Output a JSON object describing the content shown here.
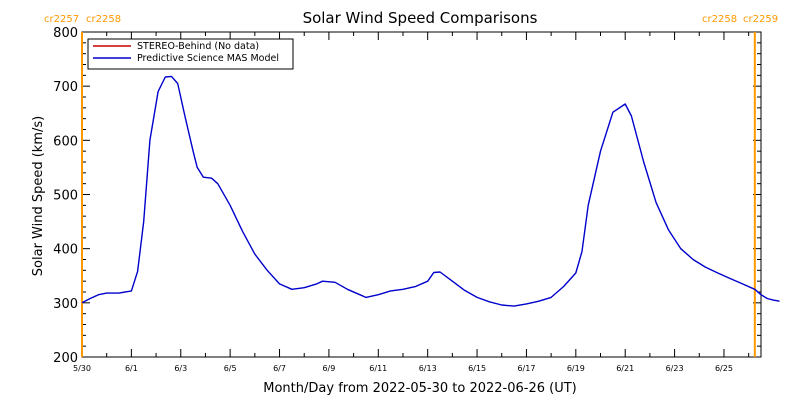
{
  "chart_data": {
    "type": "line",
    "title": "Solar Wind Speed Comparisons",
    "xlabel": "Month/Day from 2022-05-30 to 2022-06-26 (UT)",
    "ylabel": "Solar Wind Speed (km/s)",
    "ylim": [
      200,
      800
    ],
    "xlim": [
      "2022-05-30",
      "2022-06-26T12:00"
    ],
    "y_ticks": [
      "200",
      "300",
      "400",
      "500",
      "600",
      "700",
      "800"
    ],
    "x_ticks": [
      {
        "label": "5/30",
        "date": "2022-05-30"
      },
      {
        "label": "6/1",
        "date": "2022-06-01"
      },
      {
        "label": "6/3",
        "date": "2022-06-03"
      },
      {
        "label": "6/5",
        "date": "2022-06-05"
      },
      {
        "label": "6/7",
        "date": "2022-06-07"
      },
      {
        "label": "6/9",
        "date": "2022-06-09"
      },
      {
        "label": "6/11",
        "date": "2022-06-11"
      },
      {
        "label": "6/13",
        "date": "2022-06-13"
      },
      {
        "label": "6/15",
        "date": "2022-06-15"
      },
      {
        "label": "6/17",
        "date": "2022-06-17"
      },
      {
        "label": "6/19",
        "date": "2022-06-19"
      },
      {
        "label": "6/21",
        "date": "2022-06-21"
      },
      {
        "label": "6/23",
        "date": "2022-06-23"
      },
      {
        "label": "6/25",
        "date": "2022-06-25"
      }
    ],
    "carrington_markers": [
      {
        "date": "2022-05-30",
        "left_label": "cr2257",
        "right_label": "cr2258",
        "side": "left"
      },
      {
        "date": "2022-06-26T06:00",
        "left_label": "cr2258",
        "right_label": "cr2259",
        "side": "right"
      }
    ],
    "marker_color": "#ff9900",
    "legend": {
      "position": "top-left"
    },
    "series": [
      {
        "name": "STEREO-Behind (No data)",
        "color": "#cc0000",
        "points": []
      },
      {
        "name": "Predictive Science MAS Model",
        "color": "#0000cc",
        "points": [
          [
            "2022-05-30T00:00",
            300
          ],
          [
            "2022-05-30T08:00",
            308
          ],
          [
            "2022-05-30T16:00",
            315
          ],
          [
            "2022-05-31T00:00",
            318
          ],
          [
            "2022-05-31T12:00",
            318
          ],
          [
            "2022-06-01T00:00",
            322
          ],
          [
            "2022-06-01T06:00",
            358
          ],
          [
            "2022-06-01T12:00",
            450
          ],
          [
            "2022-06-01T18:00",
            600
          ],
          [
            "2022-06-02T02:00",
            690
          ],
          [
            "2022-06-02T09:00",
            717
          ],
          [
            "2022-06-02T15:00",
            718
          ],
          [
            "2022-06-02T21:00",
            705
          ],
          [
            "2022-06-03T04:00",
            645
          ],
          [
            "2022-06-03T12:00",
            580
          ],
          [
            "2022-06-03T16:00",
            550
          ],
          [
            "2022-06-03T22:00",
            532
          ],
          [
            "2022-06-04T06:00",
            530
          ],
          [
            "2022-06-04T12:00",
            520
          ],
          [
            "2022-06-05T00:00",
            480
          ],
          [
            "2022-06-05T12:00",
            432
          ],
          [
            "2022-06-06T00:00",
            390
          ],
          [
            "2022-06-06T12:00",
            360
          ],
          [
            "2022-06-07T00:00",
            335
          ],
          [
            "2022-06-07T12:00",
            325
          ],
          [
            "2022-06-08T00:00",
            328
          ],
          [
            "2022-06-08T12:00",
            335
          ],
          [
            "2022-06-08T18:00",
            340
          ],
          [
            "2022-06-09T06:00",
            338
          ],
          [
            "2022-06-09T18:00",
            325
          ],
          [
            "2022-06-10T06:00",
            315
          ],
          [
            "2022-06-10T12:00",
            310
          ],
          [
            "2022-06-11T00:00",
            315
          ],
          [
            "2022-06-11T12:00",
            322
          ],
          [
            "2022-06-12T00:00",
            325
          ],
          [
            "2022-06-12T12:00",
            330
          ],
          [
            "2022-06-13T00:00",
            340
          ],
          [
            "2022-06-13T06:00",
            356
          ],
          [
            "2022-06-13T12:00",
            357
          ],
          [
            "2022-06-14T00:00",
            340
          ],
          [
            "2022-06-14T12:00",
            323
          ],
          [
            "2022-06-15T00:00",
            310
          ],
          [
            "2022-06-15T12:00",
            302
          ],
          [
            "2022-06-16T00:00",
            296
          ],
          [
            "2022-06-16T12:00",
            294
          ],
          [
            "2022-06-17T00:00",
            298
          ],
          [
            "2022-06-17T12:00",
            303
          ],
          [
            "2022-06-18T00:00",
            310
          ],
          [
            "2022-06-18T12:00",
            330
          ],
          [
            "2022-06-19T00:00",
            355
          ],
          [
            "2022-06-19T06:00",
            395
          ],
          [
            "2022-06-19T12:00",
            480
          ],
          [
            "2022-06-20T00:00",
            580
          ],
          [
            "2022-06-20T12:00",
            652
          ],
          [
            "2022-06-21T00:00",
            667
          ],
          [
            "2022-06-21T06:00",
            645
          ],
          [
            "2022-06-21T18:00",
            560
          ],
          [
            "2022-06-22T06:00",
            485
          ],
          [
            "2022-06-22T18:00",
            435
          ],
          [
            "2022-06-23T06:00",
            400
          ],
          [
            "2022-06-23T18:00",
            380
          ],
          [
            "2022-06-24T06:00",
            366
          ],
          [
            "2022-06-24T18:00",
            355
          ],
          [
            "2022-06-25T06:00",
            345
          ],
          [
            "2022-06-25T18:00",
            335
          ],
          [
            "2022-06-26T06:00",
            325
          ],
          [
            "2022-06-26T12:00",
            315
          ],
          [
            "2022-06-26T18:00",
            308
          ],
          [
            "2022-06-27T00:00",
            305
          ],
          [
            "2022-06-27T06:00",
            303
          ]
        ]
      }
    ]
  }
}
